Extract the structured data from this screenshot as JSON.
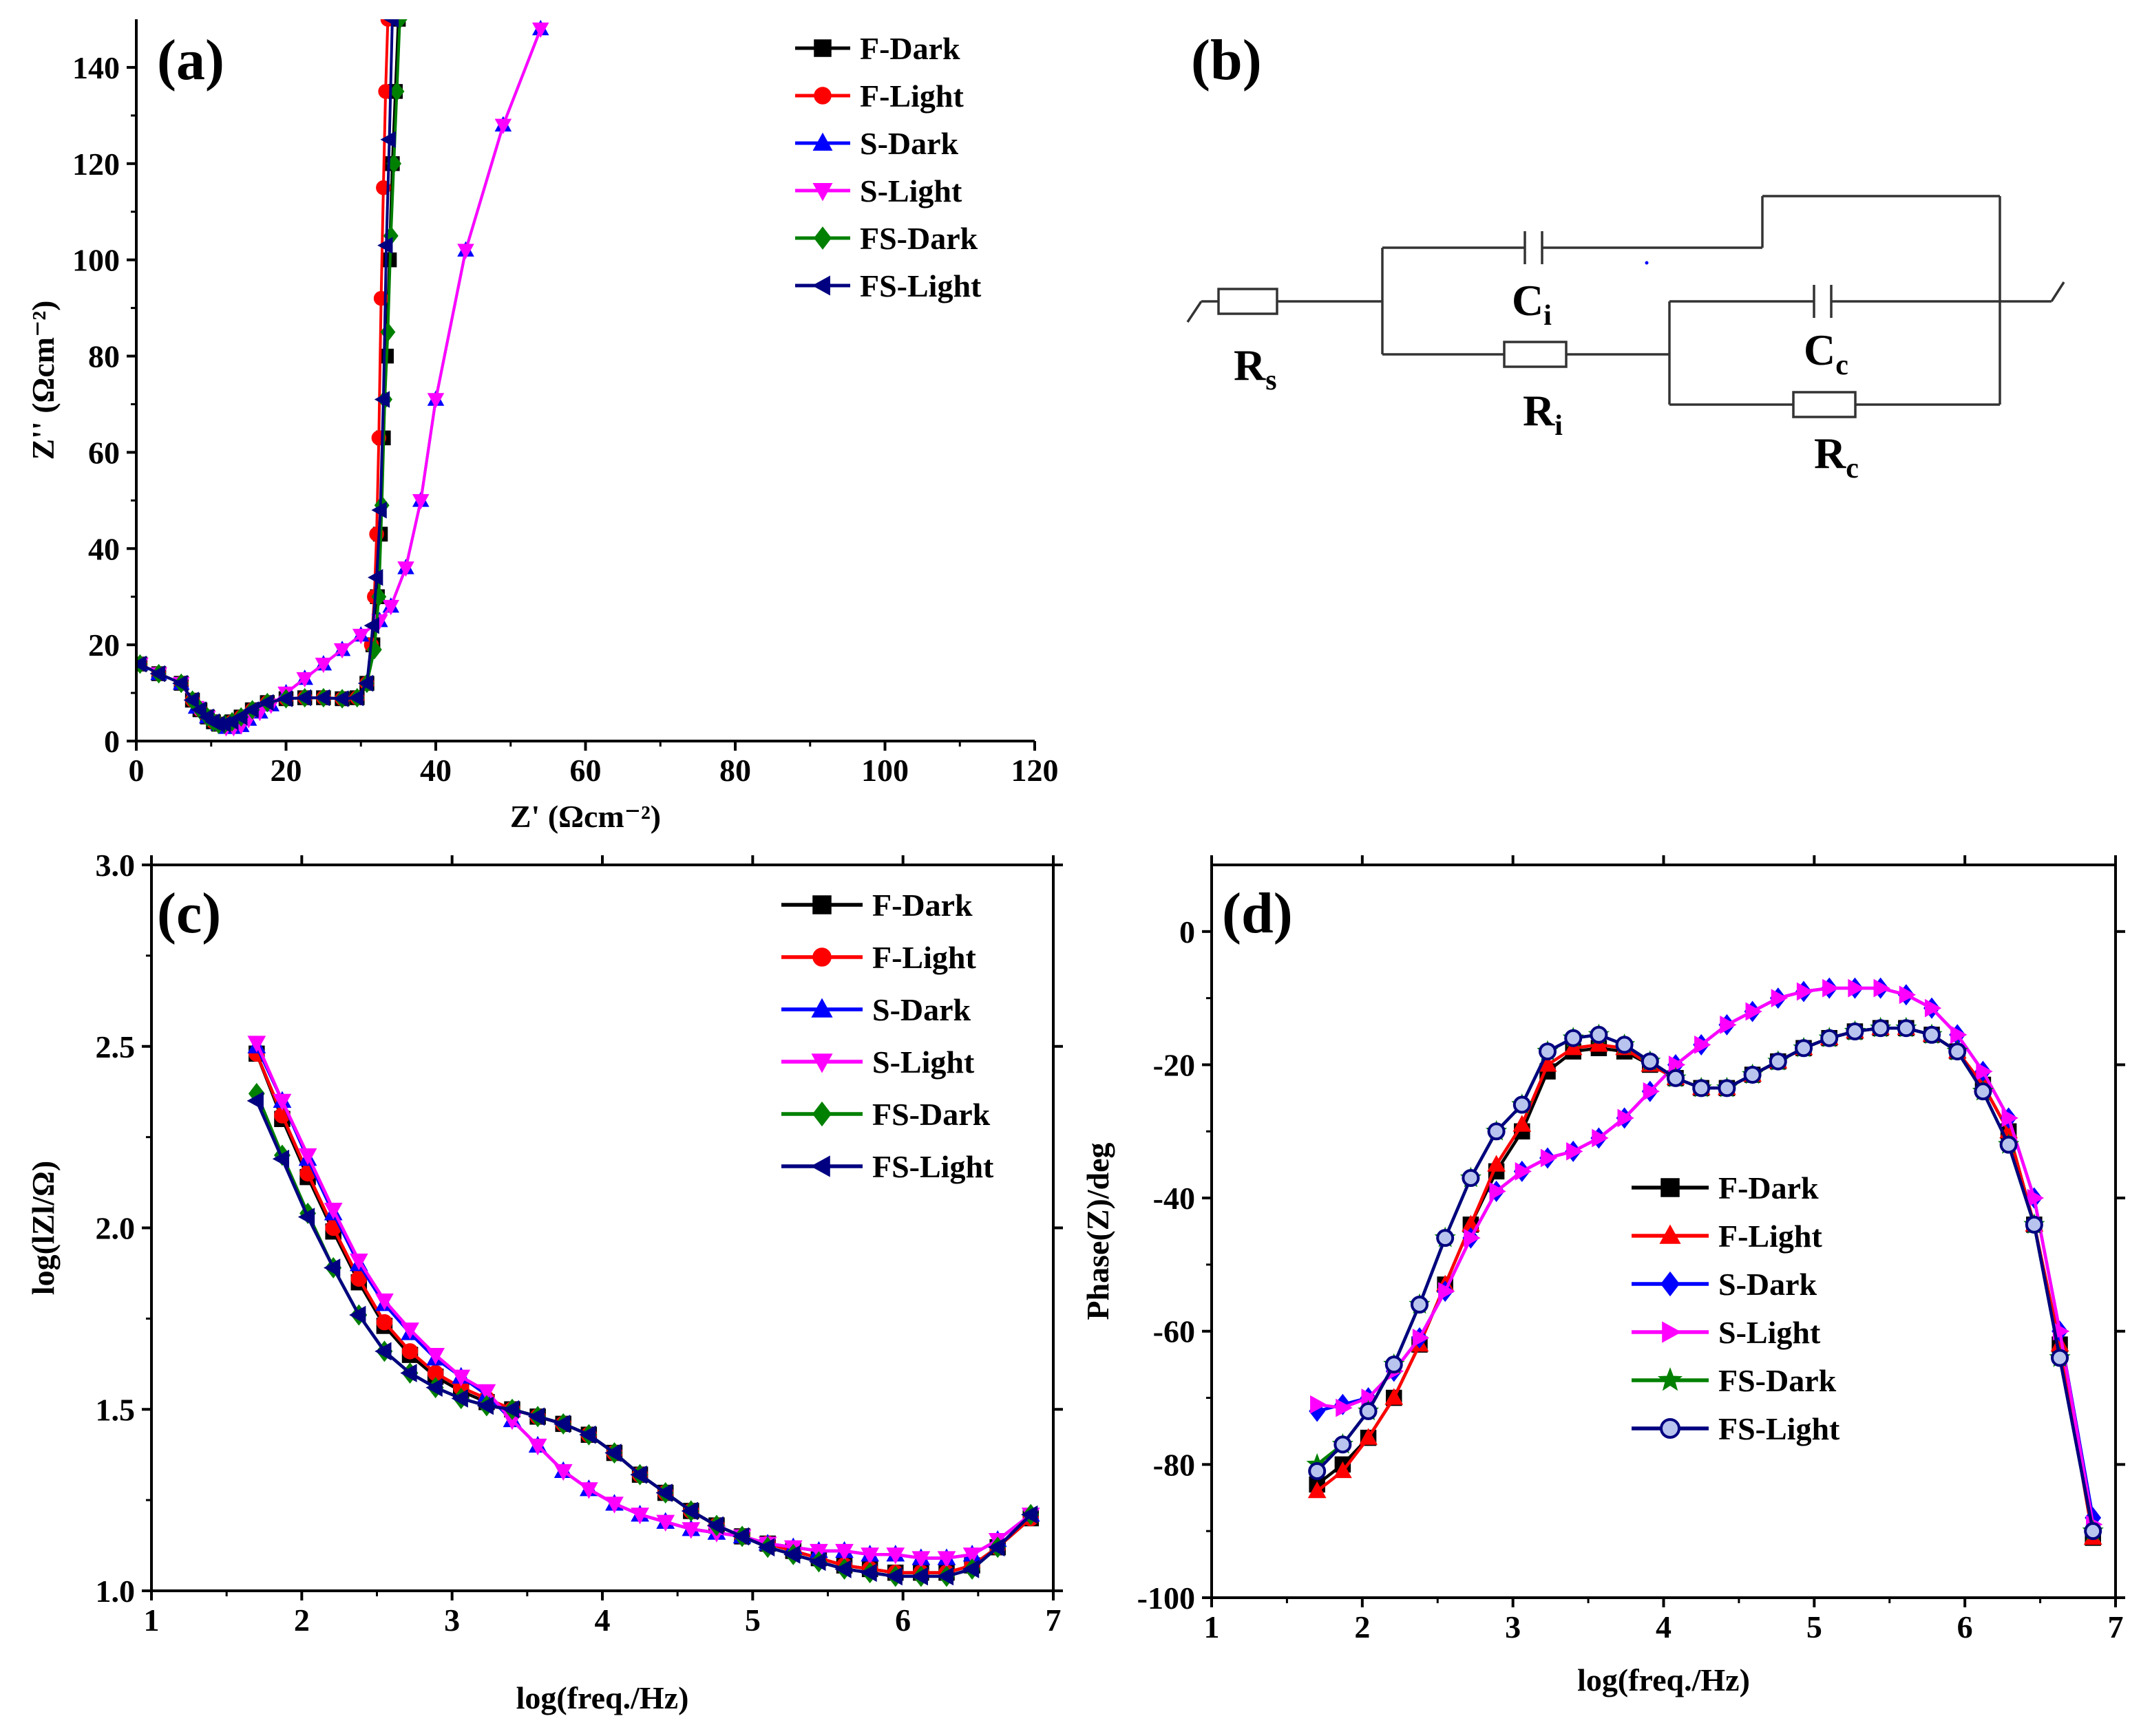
{
  "colors": {
    "F-Dark": "#000000",
    "F-Light": "#ff0000",
    "S-Dark": "#0000ff",
    "S-Light": "#ff00ff",
    "FS-Dark": "#008000",
    "FS-Light": "#000080"
  },
  "legend_labels": [
    "F-Dark",
    "F-Light",
    "S-Dark",
    "S-Light",
    "FS-Dark",
    "FS-Light"
  ],
  "panels": {
    "a": "(a)",
    "b": "(b)",
    "c": "(c)",
    "d": "(d)"
  },
  "circuit": {
    "Rs": {
      "main": "R",
      "sub": "s"
    },
    "Ci": {
      "main": "C",
      "sub": "i"
    },
    "Ri": {
      "main": "R",
      "sub": "i"
    },
    "Cc": {
      "main": "C",
      "sub": "c"
    },
    "Rc": {
      "main": "R",
      "sub": "c"
    }
  },
  "chart_data": [
    {
      "id": "a",
      "type": "scatter",
      "title": "",
      "xlabel": "Z' (Ωcm⁻²)",
      "ylabel": "Z'' (Ωcm⁻²)",
      "xlim": [
        0,
        120
      ],
      "ylim": [
        0,
        150
      ],
      "xticks": [
        0,
        20,
        40,
        60,
        80,
        100,
        120
      ],
      "yticks": [
        0,
        20,
        40,
        60,
        80,
        100,
        120,
        140
      ],
      "legend_position": "top-right",
      "series": [
        {
          "name": "F-Dark",
          "marker": "square",
          "x": [
            0.5,
            3,
            6,
            7.5,
            8.5,
            9.5,
            10.3,
            11,
            11.8,
            12.8,
            14,
            15.5,
            17.5,
            20,
            22.5,
            25,
            27.5,
            29.5,
            30.8,
            31.6,
            32.2,
            32.6,
            33,
            33.4,
            33.8,
            34.2,
            34.6,
            35
          ],
          "y": [
            16,
            14,
            12,
            8.5,
            6.5,
            5,
            4,
            3.5,
            3.5,
            4,
            5,
            6.5,
            8,
            8.8,
            9,
            9,
            8.8,
            9,
            12,
            20,
            30,
            43,
            63,
            80,
            100,
            120,
            135,
            150
          ]
        },
        {
          "name": "F-Light",
          "marker": "circle",
          "x": [
            0.5,
            3,
            6,
            7.5,
            8.5,
            9.5,
            10.3,
            11,
            11.8,
            12.8,
            14,
            15.5,
            17.5,
            20,
            22.5,
            25,
            27.5,
            29.5,
            30.8,
            31.4,
            31.8,
            32.1,
            32.4,
            32.7,
            33,
            33.3,
            33.6
          ],
          "y": [
            16,
            14,
            12,
            8.5,
            6.5,
            5,
            4,
            3.5,
            3.5,
            4,
            5,
            6.5,
            8,
            8.8,
            9,
            9,
            8.8,
            9,
            12,
            20,
            30,
            43,
            63,
            92,
            115,
            135,
            150
          ]
        },
        {
          "name": "S-Dark",
          "marker": "triangle",
          "x": [
            0.5,
            3,
            6,
            8,
            9.5,
            11,
            12,
            13,
            14,
            15,
            16.5,
            18,
            20,
            22.5,
            25,
            27.5,
            30,
            32.5,
            34,
            36,
            38,
            40,
            44,
            49,
            54
          ],
          "y": [
            16,
            14,
            12,
            7,
            5,
            3.5,
            2.8,
            2.8,
            3.2,
            4.5,
            6,
            7.5,
            10,
            13,
            16,
            19,
            22,
            25,
            28,
            36,
            50,
            71,
            102,
            128,
            148
          ]
        },
        {
          "name": "S-Light",
          "marker": "triangle-down",
          "x": [
            0.5,
            3,
            6,
            8,
            9.5,
            11,
            12,
            13,
            14,
            15,
            16.5,
            18,
            20,
            22.5,
            25,
            27.5,
            30,
            32.5,
            34,
            36,
            38,
            40,
            44,
            49,
            54
          ],
          "y": [
            16,
            14,
            12,
            7,
            5,
            3.5,
            2.8,
            2.8,
            3.2,
            4.5,
            6,
            7.5,
            10,
            13,
            16,
            19,
            22,
            25,
            28,
            36,
            50,
            71,
            102,
            128,
            148
          ]
        },
        {
          "name": "FS-Dark",
          "marker": "diamond",
          "x": [
            0.5,
            3,
            6,
            7.5,
            8.5,
            9.5,
            10.3,
            11,
            11.8,
            12.8,
            14,
            15.5,
            17.5,
            20,
            22.5,
            25,
            27.5,
            29.5,
            30.8,
            31.8,
            32.4,
            32.8,
            33.2,
            33.6,
            34,
            34.4,
            34.8,
            35.2
          ],
          "y": [
            16,
            14,
            12,
            8.5,
            6.5,
            5,
            4,
            3.5,
            3.5,
            4,
            5,
            6.5,
            8,
            8.8,
            9,
            9,
            8.8,
            9,
            12,
            19,
            30,
            49,
            71,
            85,
            105,
            120,
            135,
            150
          ]
        },
        {
          "name": "FS-Light",
          "marker": "triangle-left",
          "x": [
            0.5,
            3,
            6,
            7.5,
            8.5,
            9.5,
            10.3,
            11,
            11.8,
            12.8,
            14,
            15.5,
            17.5,
            20,
            22.5,
            25,
            27.5,
            29.5,
            30.8,
            31.6,
            32.1,
            32.6,
            33,
            33.4,
            33.8,
            34.2
          ],
          "y": [
            16,
            14,
            12,
            8.5,
            6.5,
            5,
            4,
            3.5,
            3.5,
            4,
            5,
            6.5,
            8,
            8.8,
            9,
            9,
            8.8,
            9,
            12,
            24,
            34,
            48,
            71,
            103,
            125,
            150
          ]
        }
      ]
    },
    {
      "id": "c",
      "type": "line",
      "title": "",
      "xlabel": "log(freq./Hz)",
      "ylabel": "log(lZl/Ω)",
      "xlim": [
        1,
        7
      ],
      "ylim": [
        1.0,
        3.0
      ],
      "xticks": [
        1,
        2,
        3,
        4,
        5,
        6,
        7
      ],
      "yticks": [
        1.0,
        1.5,
        2.0,
        2.5,
        3.0
      ],
      "legend_position": "top-right",
      "x": [
        1.7,
        1.87,
        2.04,
        2.21,
        2.38,
        2.55,
        2.72,
        2.89,
        3.06,
        3.23,
        3.4,
        3.57,
        3.74,
        3.91,
        4.08,
        4.25,
        4.42,
        4.59,
        4.76,
        4.93,
        5.1,
        5.27,
        5.44,
        5.61,
        5.78,
        5.95,
        6.12,
        6.29,
        6.46,
        6.63,
        6.85
      ],
      "series": [
        {
          "name": "F-Dark",
          "marker": "square",
          "values": [
            2.48,
            2.3,
            2.14,
            1.99,
            1.85,
            1.73,
            1.65,
            1.59,
            1.55,
            1.52,
            1.5,
            1.48,
            1.46,
            1.43,
            1.38,
            1.32,
            1.27,
            1.22,
            1.18,
            1.15,
            1.13,
            1.11,
            1.09,
            1.07,
            1.06,
            1.05,
            1.05,
            1.05,
            1.07,
            1.12,
            1.2
          ]
        },
        {
          "name": "F-Light",
          "marker": "circle",
          "values": [
            2.48,
            2.31,
            2.15,
            2.0,
            1.86,
            1.74,
            1.66,
            1.6,
            1.56,
            1.53,
            1.5,
            1.48,
            1.46,
            1.43,
            1.38,
            1.32,
            1.27,
            1.22,
            1.18,
            1.15,
            1.13,
            1.11,
            1.09,
            1.07,
            1.06,
            1.05,
            1.05,
            1.05,
            1.07,
            1.12,
            1.2
          ]
        },
        {
          "name": "S-Dark",
          "marker": "triangle",
          "values": [
            2.5,
            2.35,
            2.19,
            2.04,
            1.9,
            1.79,
            1.71,
            1.64,
            1.59,
            1.54,
            1.47,
            1.4,
            1.33,
            1.28,
            1.24,
            1.21,
            1.19,
            1.17,
            1.16,
            1.15,
            1.13,
            1.12,
            1.11,
            1.11,
            1.1,
            1.1,
            1.09,
            1.09,
            1.1,
            1.14,
            1.21
          ]
        },
        {
          "name": "S-Light",
          "marker": "triangle-down",
          "values": [
            2.51,
            2.35,
            2.2,
            2.05,
            1.91,
            1.8,
            1.72,
            1.65,
            1.59,
            1.55,
            1.47,
            1.4,
            1.33,
            1.28,
            1.24,
            1.21,
            1.19,
            1.17,
            1.16,
            1.15,
            1.13,
            1.12,
            1.11,
            1.11,
            1.1,
            1.1,
            1.09,
            1.09,
            1.1,
            1.14,
            1.21
          ]
        },
        {
          "name": "FS-Dark",
          "marker": "diamond",
          "values": [
            2.37,
            2.2,
            2.04,
            1.89,
            1.76,
            1.66,
            1.6,
            1.56,
            1.53,
            1.51,
            1.5,
            1.48,
            1.46,
            1.43,
            1.38,
            1.32,
            1.27,
            1.22,
            1.18,
            1.15,
            1.12,
            1.1,
            1.08,
            1.06,
            1.05,
            1.04,
            1.04,
            1.04,
            1.06,
            1.12,
            1.21
          ]
        },
        {
          "name": "FS-Light",
          "marker": "triangle-left",
          "values": [
            2.35,
            2.19,
            2.03,
            1.89,
            1.76,
            1.66,
            1.6,
            1.56,
            1.53,
            1.51,
            1.5,
            1.48,
            1.46,
            1.43,
            1.38,
            1.32,
            1.27,
            1.22,
            1.18,
            1.15,
            1.12,
            1.1,
            1.08,
            1.06,
            1.05,
            1.04,
            1.04,
            1.04,
            1.06,
            1.12,
            1.21
          ]
        }
      ]
    },
    {
      "id": "d",
      "type": "line",
      "title": "",
      "xlabel": "log(freq./Hz)",
      "ylabel": "Phase(Z)/deg",
      "xlim": [
        1,
        7
      ],
      "ylim": [
        -100,
        10
      ],
      "xticks": [
        1,
        2,
        3,
        4,
        5,
        6,
        7
      ],
      "yticks": [
        -100,
        -80,
        -60,
        -40,
        -20,
        0
      ],
      "legend_position": "center-right",
      "x": [
        1.7,
        1.87,
        2.04,
        2.21,
        2.38,
        2.55,
        2.72,
        2.89,
        3.06,
        3.23,
        3.4,
        3.57,
        3.74,
        3.91,
        4.08,
        4.25,
        4.42,
        4.59,
        4.76,
        4.93,
        5.1,
        5.27,
        5.44,
        5.61,
        5.78,
        5.95,
        6.12,
        6.29,
        6.46,
        6.63,
        6.85
      ],
      "series": [
        {
          "name": "F-Dark",
          "marker": "square",
          "values": [
            -83,
            -80,
            -76,
            -70,
            -62,
            -53,
            -44,
            -36,
            -30,
            -21,
            -18,
            -17.5,
            -18,
            -20,
            -22,
            -23.5,
            -23.5,
            -21.5,
            -19.5,
            -17.5,
            -16,
            -15,
            -14.5,
            -14.5,
            -15.5,
            -18,
            -23,
            -30,
            -44,
            -62,
            -91
          ]
        },
        {
          "name": "F-Light",
          "marker": "triangle",
          "values": [
            -84,
            -81,
            -76,
            -70,
            -62,
            -53,
            -44,
            -35,
            -29,
            -20,
            -17.5,
            -17,
            -17.5,
            -20,
            -22,
            -23.5,
            -23.5,
            -21.5,
            -19.5,
            -17.5,
            -16,
            -15,
            -14.5,
            -14.5,
            -15.5,
            -18,
            -23,
            -30,
            -44,
            -62,
            -91
          ]
        },
        {
          "name": "S-Dark",
          "marker": "diamond",
          "values": [
            -72,
            -71,
            -70,
            -66,
            -61,
            -54,
            -46,
            -39,
            -36,
            -34,
            -33,
            -31,
            -28,
            -24,
            -20,
            -17,
            -14,
            -12,
            -10,
            -9,
            -8.5,
            -8.5,
            -8.5,
            -9.5,
            -11.5,
            -15.5,
            -21,
            -28,
            -40,
            -60,
            -88
          ]
        },
        {
          "name": "S-Light",
          "marker": "triangle-right",
          "values": [
            -71,
            -71.5,
            -70,
            -66,
            -61,
            -54,
            -46,
            -39,
            -36,
            -34,
            -33,
            -31,
            -28,
            -24,
            -20,
            -17,
            -14,
            -12,
            -10,
            -9,
            -8.5,
            -8.5,
            -8.5,
            -9.5,
            -11.5,
            -15.5,
            -21,
            -28,
            -40,
            -60,
            -89
          ]
        },
        {
          "name": "FS-Dark",
          "marker": "star",
          "values": [
            -80,
            -77,
            -72,
            -65,
            -56,
            -46,
            -37,
            -30,
            -26,
            -18,
            -16,
            -15.5,
            -17,
            -19.5,
            -22,
            -23.5,
            -23.5,
            -21.5,
            -19.5,
            -17.5,
            -16,
            -15,
            -14.5,
            -14.5,
            -15.5,
            -18,
            -24,
            -32,
            -44,
            -64,
            -90
          ]
        },
        {
          "name": "FS-Light",
          "marker": "ring",
          "values": [
            -81,
            -77,
            -72,
            -65,
            -56,
            -46,
            -37,
            -30,
            -26,
            -18,
            -16,
            -15.5,
            -17,
            -19.5,
            -22,
            -23.5,
            -23.5,
            -21.5,
            -19.5,
            -17.5,
            -16,
            -15,
            -14.5,
            -14.5,
            -15.5,
            -18,
            -24,
            -32,
            -44,
            -64,
            -90
          ]
        }
      ]
    }
  ]
}
